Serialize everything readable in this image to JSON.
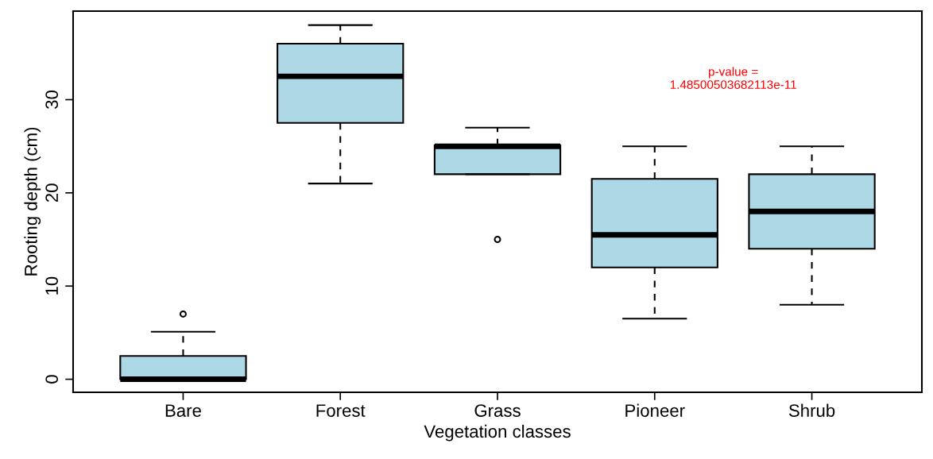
{
  "chart_data": {
    "type": "box",
    "xlabel": "Vegetation classes",
    "ylabel": "Rooting depth (cm)",
    "categories": [
      "Bare",
      "Forest",
      "Grass",
      "Pioneer",
      "Shrub"
    ],
    "color": "#add8e6",
    "boxes": [
      {
        "low": 0,
        "q1": 0,
        "median": 0,
        "q3": 2.5,
        "high": 5.1,
        "outliers": [
          7
        ]
      },
      {
        "low": 21,
        "q1": 27.5,
        "median": 32.5,
        "q3": 36,
        "high": 38
      },
      {
        "low": 22,
        "q1": 22,
        "median": 25,
        "q3": 25.1,
        "high": 27,
        "outliers": [
          15
        ]
      },
      {
        "low": 6.5,
        "q1": 12,
        "median": 15.5,
        "q3": 21.5,
        "high": 25
      },
      {
        "low": 8,
        "q1": 14,
        "median": 18,
        "q3": 22,
        "high": 25
      }
    ],
    "ylim": [
      -1.4,
      39.5
    ],
    "yticks": [
      0,
      10,
      20,
      30
    ],
    "grid": false,
    "legend": false,
    "annotations": [
      "p-value =\n1.48500503682113e-11"
    ]
  }
}
